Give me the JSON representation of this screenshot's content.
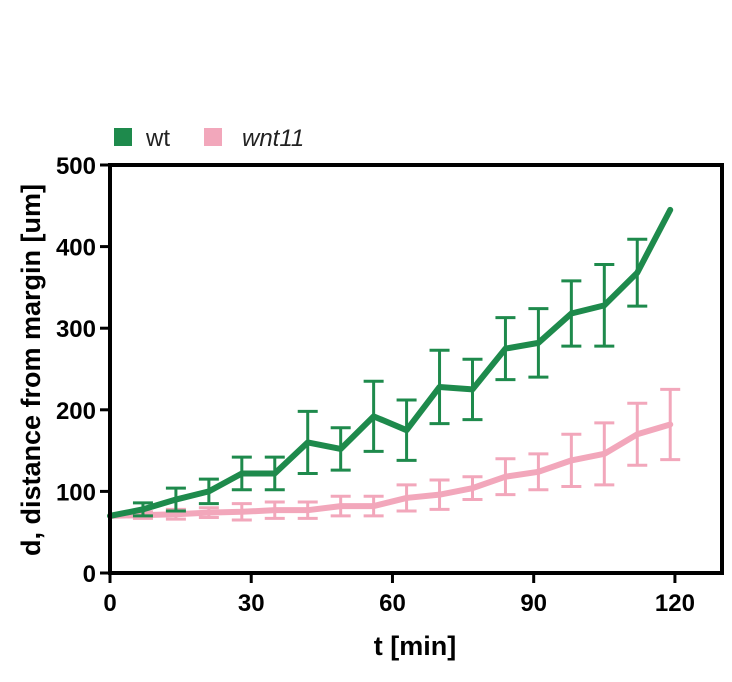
{
  "chart_data": {
    "type": "line",
    "xlabel": "t [min]",
    "ylabel": "d, distance from margin [um]",
    "xlim": [
      0,
      130
    ],
    "ylim": [
      0,
      500
    ],
    "x_ticks": [
      0,
      30,
      60,
      90,
      120
    ],
    "y_ticks": [
      0,
      100,
      200,
      300,
      400,
      500
    ],
    "legend_position": "top-left",
    "error_bars": true,
    "grid": false,
    "x": [
      0,
      7,
      14,
      21,
      28,
      35,
      42,
      49,
      56,
      63,
      70,
      77,
      84,
      91,
      98,
      105,
      112,
      119
    ],
    "series": [
      {
        "name": "wt",
        "italic": false,
        "color": "#1e8a4c",
        "values": [
          70,
          78,
          90,
          100,
          122,
          122,
          160,
          152,
          192,
          175,
          228,
          225,
          275,
          282,
          318,
          328,
          368,
          445
        ],
        "errors": [
          0,
          8,
          14,
          15,
          20,
          20,
          38,
          26,
          43,
          37,
          45,
          37,
          38,
          42,
          40,
          50,
          41,
          0
        ]
      },
      {
        "name": "wnt11",
        "italic": true,
        "color": "#f2a7bb",
        "values": [
          70,
          71,
          72,
          74,
          75,
          77,
          77,
          82,
          82,
          92,
          96,
          104,
          118,
          124,
          138,
          146,
          170,
          182
        ],
        "errors": [
          0,
          4,
          6,
          6,
          10,
          10,
          10,
          12,
          12,
          16,
          18,
          14,
          22,
          22,
          32,
          38,
          38,
          43
        ]
      }
    ]
  }
}
